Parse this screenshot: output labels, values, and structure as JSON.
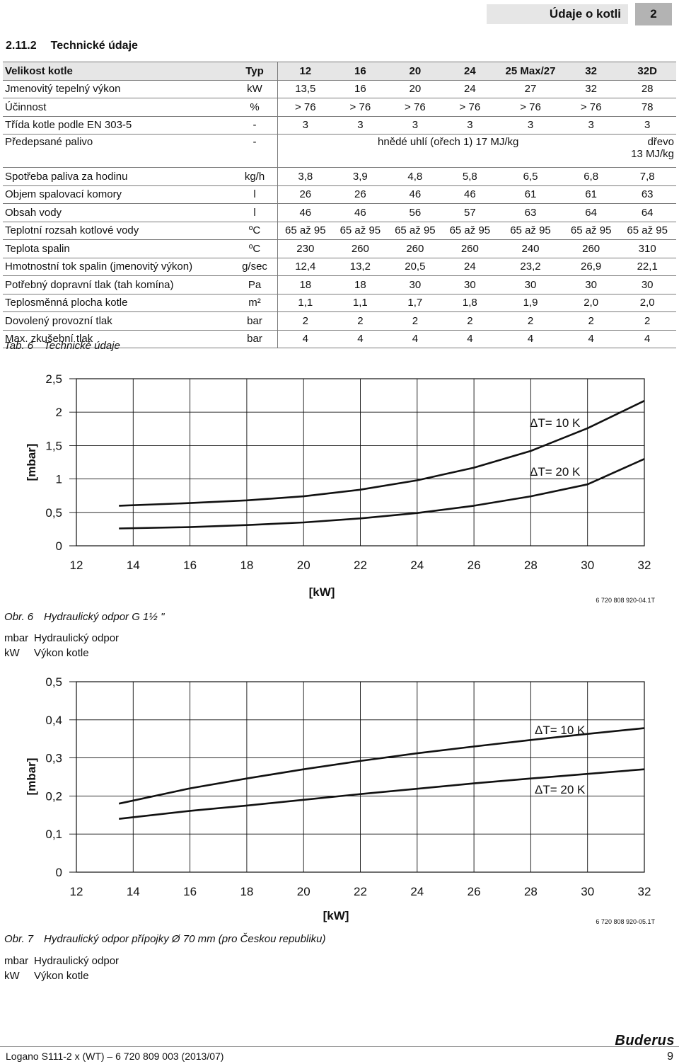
{
  "header": {
    "title": "Údaje o kotli",
    "page_section": "2"
  },
  "section": {
    "number": "2.11.2",
    "title": "Technické údaje"
  },
  "table": {
    "columns": [
      "Velikost kotle",
      "Typ",
      "12",
      "16",
      "20",
      "24",
      "25 Max/27",
      "32",
      "32D"
    ],
    "rows": [
      [
        "Jmenovitý tepelný výkon",
        "kW",
        "13,5",
        "16",
        "20",
        "24",
        "27",
        "32",
        "28"
      ],
      [
        "Účinnost",
        "%",
        "> 76",
        "> 76",
        "> 76",
        "> 76",
        "> 76",
        "> 76",
        "78"
      ],
      [
        "Třída kotle podle EN 303-5",
        "-",
        "3",
        "3",
        "3",
        "3",
        "3",
        "3",
        "3"
      ]
    ],
    "fuel_row": {
      "label": "Předepsané palivo",
      "unit": "-",
      "coal": "hnědé uhlí (ořech 1) 17 MJ/kg",
      "wood_1": "dřevo",
      "wood_2": "13 MJ/kg"
    },
    "rows2": [
      [
        "Spotřeba paliva za hodinu",
        "kg/h",
        "3,8",
        "3,9",
        "4,8",
        "5,8",
        "6,5",
        "6,8",
        "7,8"
      ],
      [
        "Objem spalovací komory",
        "l",
        "26",
        "26",
        "46",
        "46",
        "61",
        "61",
        "63"
      ],
      [
        "Obsah vody",
        "l",
        "46",
        "46",
        "56",
        "57",
        "63",
        "64",
        "64"
      ],
      [
        "Teplotní rozsah kotlové vody",
        "ºC",
        "65 až 95",
        "65 až 95",
        "65 až 95",
        "65 až 95",
        "65 až 95",
        "65 až 95",
        "65 až 95"
      ],
      [
        "Teplota spalin",
        "ºC",
        "230",
        "260",
        "260",
        "260",
        "240",
        "260",
        "310"
      ],
      [
        "Hmotnostní tok spalin (jmenovitý výkon)",
        "g/sec",
        "12,4",
        "13,2",
        "20,5",
        "24",
        "23,2",
        "26,9",
        "22,1"
      ],
      [
        "Potřebný dopravní tlak (tah komína)",
        "Pa",
        "18",
        "18",
        "30",
        "30",
        "30",
        "30",
        "30"
      ],
      [
        "Teplosměnná plocha kotle",
        "m²",
        "1,1",
        "1,1",
        "1,7",
        "1,8",
        "1,9",
        "2,0",
        "2,0"
      ],
      [
        "Dovolený provozní tlak",
        "bar",
        "2",
        "2",
        "2",
        "2",
        "2",
        "2",
        "2"
      ],
      [
        "Max. zkušební tlak",
        "bar",
        "4",
        "4",
        "4",
        "4",
        "4",
        "4",
        "4"
      ]
    ],
    "caption_num": "Tab. 6",
    "caption_text": "Technické údaje"
  },
  "chart_data": [
    {
      "type": "line",
      "xlabel": "[kW]",
      "ylabel": "[mbar]",
      "x_ticks": [
        "12",
        "14",
        "16",
        "18",
        "20",
        "22",
        "24",
        "26",
        "28",
        "30",
        "32"
      ],
      "y_ticks": [
        "0",
        "0,5",
        "1",
        "1,5",
        "2",
        "2,5"
      ],
      "xlim": [
        12,
        32
      ],
      "ylim": [
        0,
        2.5
      ],
      "grid": true,
      "series": [
        {
          "name": "ΔT= 10 K",
          "x": [
            13.5,
            16,
            18,
            20,
            22,
            24,
            26,
            28,
            30,
            32
          ],
          "y": [
            0.6,
            0.64,
            0.68,
            0.74,
            0.84,
            0.98,
            1.17,
            1.42,
            1.76,
            2.17
          ]
        },
        {
          "name": "ΔT= 20 K",
          "x": [
            13.5,
            16,
            18,
            20,
            22,
            24,
            26,
            28,
            30,
            32
          ],
          "y": [
            0.26,
            0.28,
            0.31,
            0.35,
            0.41,
            0.49,
            0.6,
            0.74,
            0.92,
            1.3
          ]
        }
      ],
      "code": "6 720 808 920-04.1T",
      "caption_num": "Obr. 6",
      "caption_text": "Hydraulický odpor G 1½ \"",
      "legend": [
        {
          "k": "mbar",
          "v": "Hydraulický odpor"
        },
        {
          "k": "kW",
          "v": "Výkon kotle"
        }
      ]
    },
    {
      "type": "line",
      "xlabel": "[kW]",
      "ylabel": "[mbar]",
      "x_ticks": [
        "12",
        "14",
        "16",
        "18",
        "20",
        "22",
        "24",
        "26",
        "28",
        "30",
        "32"
      ],
      "y_ticks": [
        "0",
        "0,1",
        "0,2",
        "0,3",
        "0,4",
        "0,5"
      ],
      "xlim": [
        12,
        32
      ],
      "ylim": [
        0,
        0.5
      ],
      "grid": true,
      "series": [
        {
          "name": "ΔT= 10 K",
          "x": [
            13.5,
            16,
            18,
            20,
            22,
            24,
            26,
            28,
            30,
            32
          ],
          "y": [
            0.18,
            0.22,
            0.246,
            0.27,
            0.292,
            0.312,
            0.33,
            0.347,
            0.363,
            0.378
          ]
        },
        {
          "name": "ΔT= 20 K",
          "x": [
            13.5,
            16,
            18,
            20,
            22,
            24,
            26,
            28,
            30,
            32
          ],
          "y": [
            0.14,
            0.161,
            0.175,
            0.19,
            0.205,
            0.219,
            0.233,
            0.246,
            0.258,
            0.27
          ]
        }
      ],
      "code": "6 720 808 920-05.1T",
      "caption_num": "Obr. 7",
      "caption_text": "Hydraulický odpor přípojky Ø 70 mm (pro Českou republiku)",
      "legend": [
        {
          "k": "mbar",
          "v": "Hydraulický odpor"
        },
        {
          "k": "kW",
          "v": "Výkon kotle"
        }
      ]
    }
  ],
  "footer": {
    "left": "Logano S111-2 x (WT) – 6 720 809 003 (2013/07)",
    "logo": "Buderus",
    "page": "9"
  }
}
